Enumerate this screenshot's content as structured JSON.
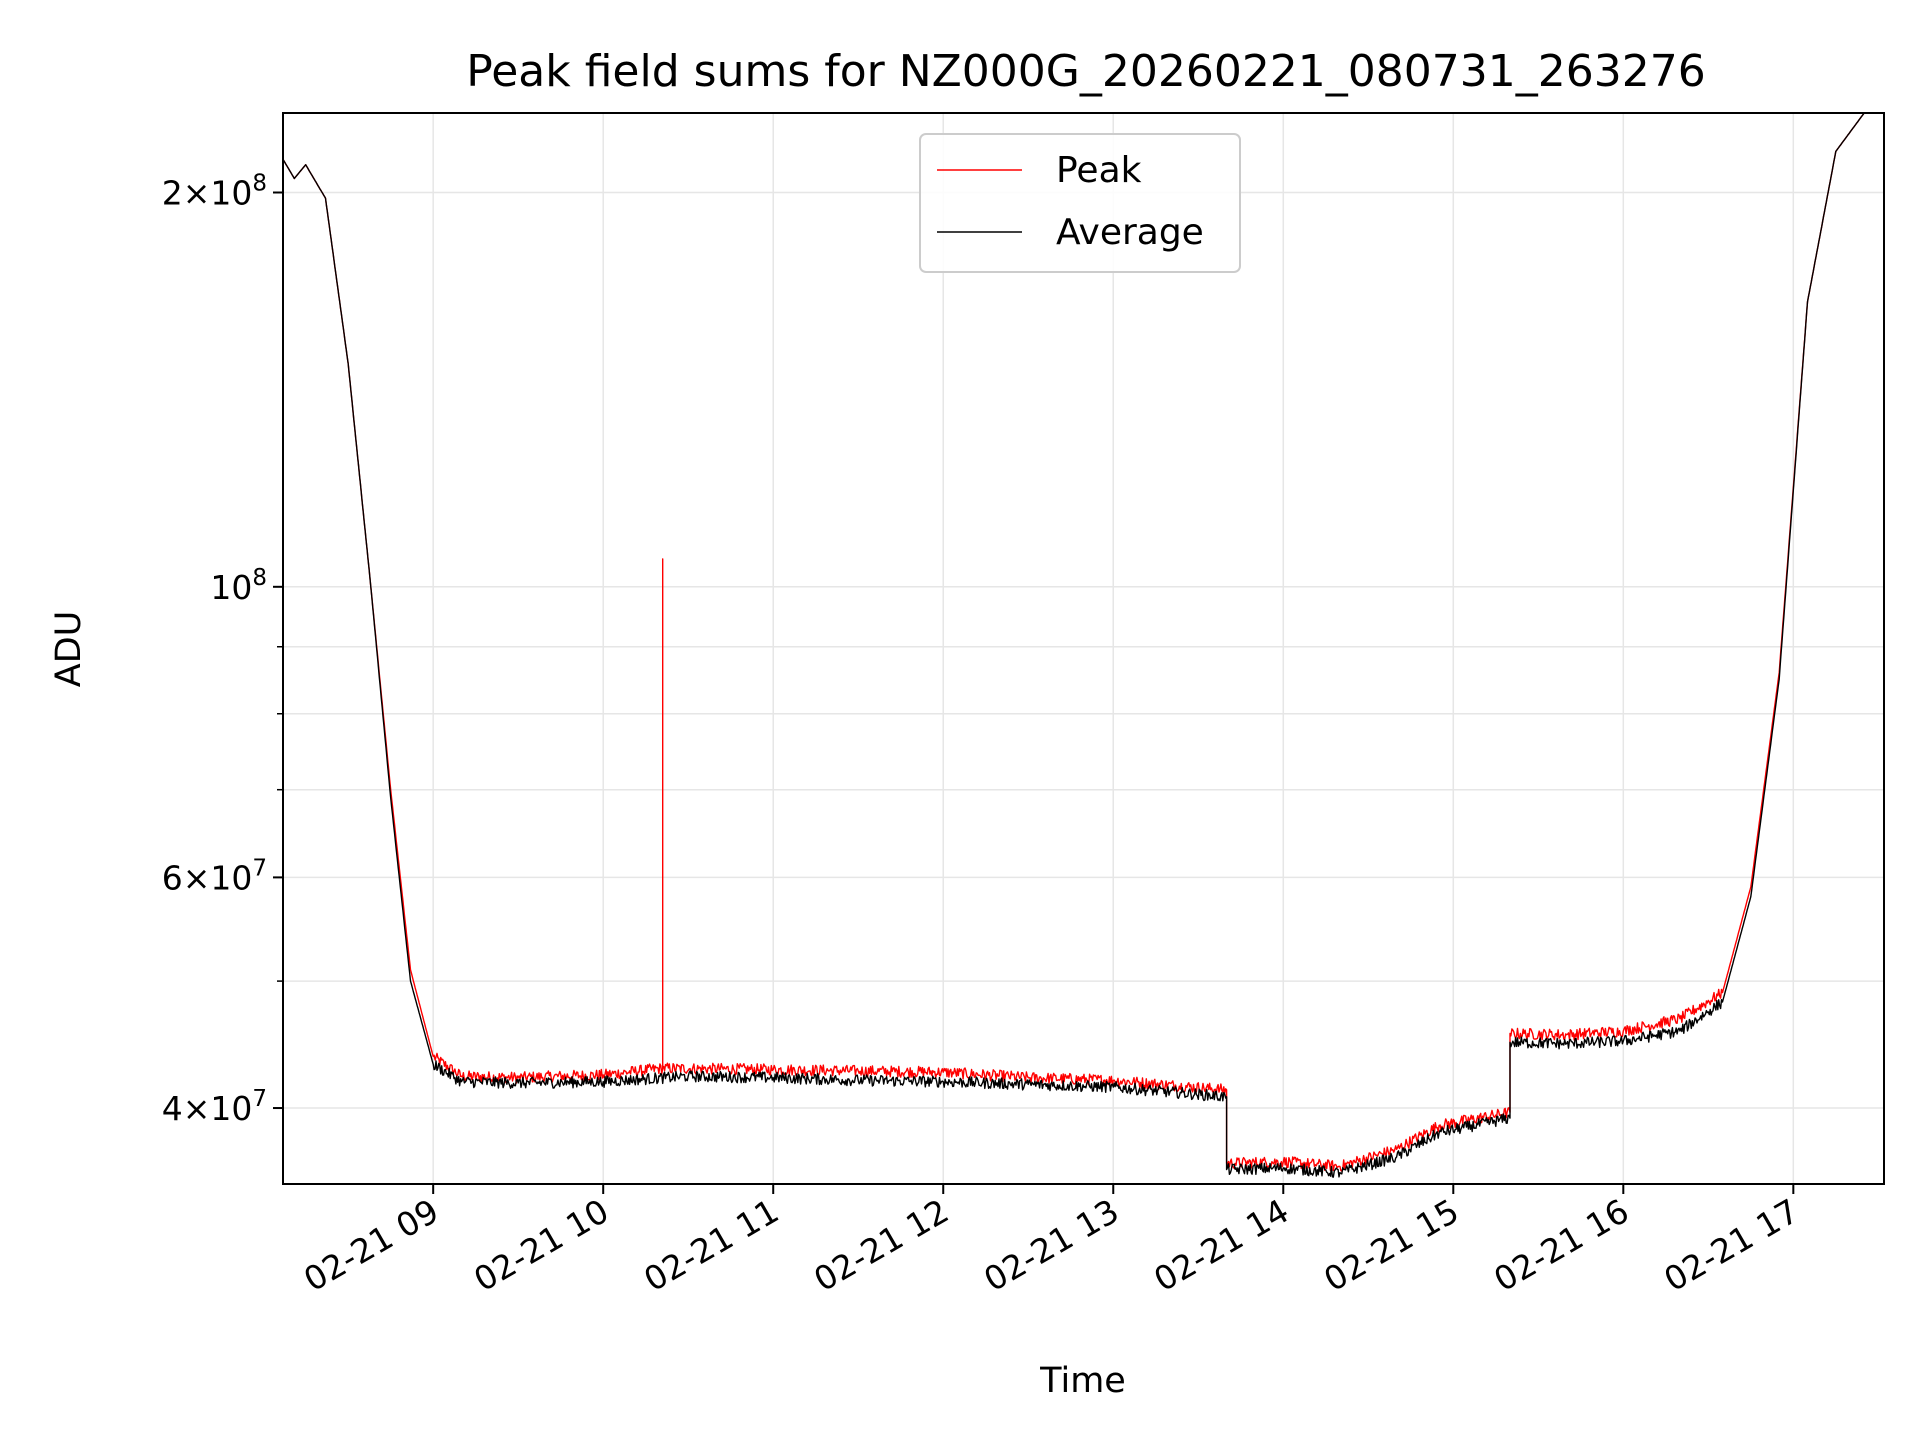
{
  "chart_data": {
    "type": "line",
    "title": "Peak field sums for NZ000G_20260221_080731_263276",
    "xlabel": "Time",
    "ylabel": "ADU",
    "y_scale": "log",
    "ylim": [
      35000000,
      230000000
    ],
    "xlim": [
      "2026-02-21 08:07",
      "2026-02-21 17:32"
    ],
    "grid": true,
    "legend_position": "top-center",
    "x_ticks": [
      {
        "label": "02-21 09",
        "value": "2026-02-21 09:00"
      },
      {
        "label": "02-21 10",
        "value": "2026-02-21 10:00"
      },
      {
        "label": "02-21 11",
        "value": "2026-02-21 11:00"
      },
      {
        "label": "02-21 12",
        "value": "2026-02-21 12:00"
      },
      {
        "label": "02-21 13",
        "value": "2026-02-21 13:00"
      },
      {
        "label": "02-21 14",
        "value": "2026-02-21 14:00"
      },
      {
        "label": "02-21 15",
        "value": "2026-02-21 15:00"
      },
      {
        "label": "02-21 16",
        "value": "2026-02-21 16:00"
      },
      {
        "label": "02-21 17",
        "value": "2026-02-21 17:00"
      }
    ],
    "y_ticks": [
      {
        "value": 40000000,
        "base": "4",
        "exp": "7"
      },
      {
        "value": 60000000,
        "base": "6",
        "exp": "7"
      },
      {
        "value": 100000000,
        "base": "",
        "exp": "8"
      },
      {
        "value": 200000000,
        "base": "2",
        "exp": "8"
      }
    ],
    "y_minor_ticks": [
      50000000,
      70000000,
      80000000,
      90000000
    ],
    "series": [
      {
        "name": "Peak",
        "color": "#ff0000",
        "points": [
          [
            "2026-02-21 08:07",
            212000000
          ],
          [
            "2026-02-21 08:11",
            205000000
          ],
          [
            "2026-02-21 08:15",
            210000000
          ],
          [
            "2026-02-21 08:22",
            198000000
          ],
          [
            "2026-02-21 08:30",
            148000000
          ],
          [
            "2026-02-21 08:38",
            100000000
          ],
          [
            "2026-02-21 08:45",
            70000000
          ],
          [
            "2026-02-21 08:52",
            51000000
          ],
          [
            "2026-02-21 09:00",
            43800000
          ],
          [
            "2026-02-21 09:10",
            42300000
          ],
          [
            "2026-02-21 09:30",
            42200000
          ],
          [
            "2026-02-21 10:00",
            42400000
          ],
          [
            "2026-02-21 10:21",
            42900000
          ],
          [
            "2026-02-21 10:21",
            105000000
          ],
          [
            "2026-02-21 10:21",
            42900000
          ],
          [
            "2026-02-21 11:00",
            42800000
          ],
          [
            "2026-02-21 11:30",
            42700000
          ],
          [
            "2026-02-21 12:00",
            42600000
          ],
          [
            "2026-02-21 12:30",
            42200000
          ],
          [
            "2026-02-21 13:00",
            42000000
          ],
          [
            "2026-02-21 13:40",
            41300000
          ],
          [
            "2026-02-21 13:40",
            36300000
          ],
          [
            "2026-02-21 14:00",
            36400000
          ],
          [
            "2026-02-21 14:20",
            36100000
          ],
          [
            "2026-02-21 14:40",
            37200000
          ],
          [
            "2026-02-21 14:55",
            38800000
          ],
          [
            "2026-02-21 15:20",
            39700000
          ],
          [
            "2026-02-21 15:20",
            45600000
          ],
          [
            "2026-02-21 15:40",
            45500000
          ],
          [
            "2026-02-21 16:00",
            45800000
          ],
          [
            "2026-02-21 16:20",
            46800000
          ],
          [
            "2026-02-21 16:35",
            49000000
          ],
          [
            "2026-02-21 16:45",
            59000000
          ],
          [
            "2026-02-21 16:55",
            86000000
          ],
          [
            "2026-02-21 17:05",
            165000000
          ],
          [
            "2026-02-21 17:15",
            215000000
          ],
          [
            "2026-02-21 17:25",
            230000000
          ],
          [
            "2026-02-21 17:32",
            230000000
          ]
        ]
      },
      {
        "name": "Average",
        "color": "#000000",
        "points": [
          [
            "2026-02-21 08:07",
            212000000
          ],
          [
            "2026-02-21 08:11",
            205000000
          ],
          [
            "2026-02-21 08:15",
            210000000
          ],
          [
            "2026-02-21 08:22",
            198000000
          ],
          [
            "2026-02-21 08:30",
            148000000
          ],
          [
            "2026-02-21 08:38",
            100000000
          ],
          [
            "2026-02-21 08:45",
            69000000
          ],
          [
            "2026-02-21 08:52",
            50000000
          ],
          [
            "2026-02-21 09:00",
            43200000
          ],
          [
            "2026-02-21 09:10",
            41900000
          ],
          [
            "2026-02-21 09:30",
            41800000
          ],
          [
            "2026-02-21 10:00",
            41900000
          ],
          [
            "2026-02-21 10:30",
            42300000
          ],
          [
            "2026-02-21 11:00",
            42200000
          ],
          [
            "2026-02-21 11:30",
            42000000
          ],
          [
            "2026-02-21 12:00",
            41900000
          ],
          [
            "2026-02-21 12:30",
            41700000
          ],
          [
            "2026-02-21 13:00",
            41500000
          ],
          [
            "2026-02-21 13:40",
            40800000
          ],
          [
            "2026-02-21 13:40",
            35900000
          ],
          [
            "2026-02-21 14:00",
            36000000
          ],
          [
            "2026-02-21 14:20",
            35700000
          ],
          [
            "2026-02-21 14:40",
            36700000
          ],
          [
            "2026-02-21 14:55",
            38300000
          ],
          [
            "2026-02-21 15:20",
            39300000
          ],
          [
            "2026-02-21 15:20",
            44900000
          ],
          [
            "2026-02-21 15:40",
            44800000
          ],
          [
            "2026-02-21 16:00",
            45000000
          ],
          [
            "2026-02-21 16:20",
            45800000
          ],
          [
            "2026-02-21 16:35",
            48200000
          ],
          [
            "2026-02-21 16:45",
            58000000
          ],
          [
            "2026-02-21 16:55",
            85000000
          ],
          [
            "2026-02-21 17:05",
            165000000
          ],
          [
            "2026-02-21 17:15",
            215000000
          ],
          [
            "2026-02-21 17:25",
            230000000
          ],
          [
            "2026-02-21 17:32",
            230000000
          ]
        ]
      }
    ]
  }
}
